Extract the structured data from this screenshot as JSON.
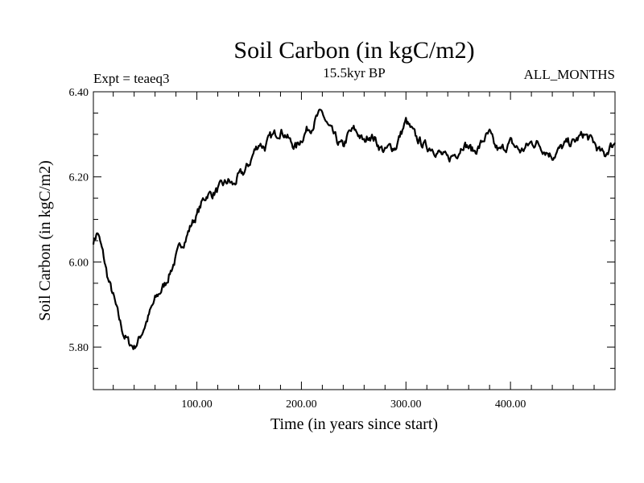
{
  "chart_data": {
    "type": "line",
    "title": "Soil Carbon (in kgC/m2)",
    "subtitle_left": "Expt = teaeq3",
    "subtitle_center": "15.5kyr BP",
    "subtitle_right": "ALL_MONTHS",
    "xlabel": "Time (in years since start)",
    "ylabel": "Soil Carbon (in kgC/m2)",
    "xlim": [
      1,
      500
    ],
    "ylim": [
      5.7,
      6.4
    ],
    "xticks": [
      100,
      200,
      300,
      400
    ],
    "xtick_labels": [
      "100.00",
      "200.00",
      "300.00",
      "400.00"
    ],
    "yticks": [
      5.8,
      6.0,
      6.2,
      6.4
    ],
    "ytick_labels": [
      "5.80",
      "6.00",
      "6.20",
      "6.40"
    ],
    "grid": false,
    "series": [
      {
        "name": "Soil Carbon",
        "x": [
          1,
          5,
          10,
          15,
          20,
          25,
          30,
          35,
          40,
          45,
          50,
          55,
          60,
          65,
          70,
          75,
          80,
          85,
          90,
          95,
          100,
          105,
          110,
          115,
          120,
          125,
          130,
          135,
          140,
          145,
          150,
          155,
          160,
          165,
          170,
          175,
          180,
          185,
          190,
          195,
          200,
          205,
          210,
          215,
          220,
          225,
          230,
          235,
          240,
          245,
          250,
          255,
          260,
          265,
          270,
          275,
          280,
          285,
          290,
          295,
          300,
          305,
          310,
          315,
          320,
          325,
          330,
          335,
          340,
          345,
          350,
          355,
          360,
          365,
          370,
          375,
          380,
          385,
          390,
          395,
          400,
          405,
          410,
          415,
          420,
          425,
          430,
          435,
          440,
          445,
          450,
          455,
          460,
          465,
          470,
          475,
          480,
          485,
          490,
          495,
          500
        ],
        "values": [
          6.05,
          6.07,
          6.02,
          5.96,
          5.92,
          5.87,
          5.83,
          5.81,
          5.8,
          5.82,
          5.85,
          5.88,
          5.91,
          5.93,
          5.95,
          5.98,
          6.01,
          6.04,
          6.06,
          6.09,
          6.11,
          6.14,
          6.16,
          6.16,
          6.17,
          6.18,
          6.19,
          6.18,
          6.2,
          6.21,
          6.23,
          6.26,
          6.28,
          6.27,
          6.29,
          6.3,
          6.31,
          6.3,
          6.28,
          6.27,
          6.29,
          6.31,
          6.32,
          6.34,
          6.35,
          6.32,
          6.3,
          6.28,
          6.27,
          6.3,
          6.31,
          6.3,
          6.28,
          6.3,
          6.29,
          6.27,
          6.26,
          6.27,
          6.27,
          6.3,
          6.33,
          6.31,
          6.29,
          6.28,
          6.27,
          6.27,
          6.26,
          6.25,
          6.24,
          6.25,
          6.26,
          6.28,
          6.27,
          6.26,
          6.27,
          6.29,
          6.3,
          6.27,
          6.26,
          6.27,
          6.28,
          6.27,
          6.26,
          6.27,
          6.28,
          6.28,
          6.27,
          6.26,
          6.25,
          6.26,
          6.27,
          6.28,
          6.28,
          6.29,
          6.3,
          6.29,
          6.28,
          6.26,
          6.25,
          6.27,
          6.28
        ]
      }
    ]
  }
}
